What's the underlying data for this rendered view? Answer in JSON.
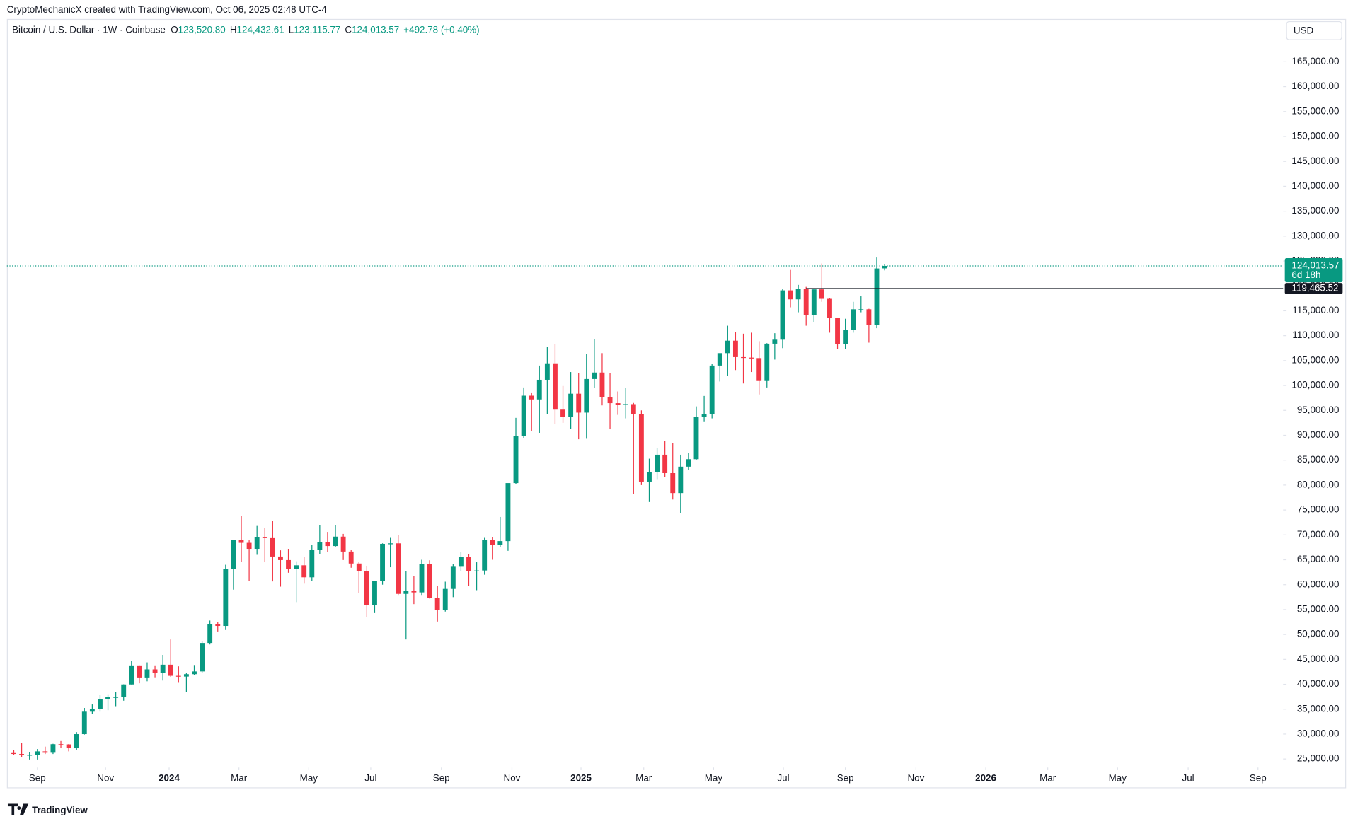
{
  "header": {
    "credit": "CryptoMechanicX created with TradingView.com, Oct 06, 2025 02:48 UTC-4",
    "symbol": "Bitcoin / U.S. Dollar · 1W · Coinbase",
    "ohlc": [
      {
        "key": "O",
        "value": "123,520.80"
      },
      {
        "key": "H",
        "value": "124,432.61"
      },
      {
        "key": "L",
        "value": "123,115.77"
      },
      {
        "key": "C",
        "value": "124,013.57"
      }
    ],
    "change": "+492.78 (+0.40%)",
    "currency": "USD"
  },
  "logo": "TradingView",
  "chart_data": {
    "type": "candlestick",
    "up_color": "#089981",
    "down_color": "#f23645",
    "open": [
      26190,
      26010,
      25830,
      25840,
      26530,
      26250,
      27970,
      27930,
      27150,
      29990,
      34500,
      35020,
      37060,
      37450,
      37450,
      39970,
      43790,
      41370,
      42990,
      42270,
      43930,
      41700,
      41550,
      42030,
      42580,
      48300,
      52130,
      51720,
      63120,
      68950,
      68400,
      67200,
      69600,
      69350,
      65650,
      64940,
      63100,
      63890,
      61480,
      66930,
      68550,
      67760,
      69650,
      66650,
      64250,
      62700,
      55850,
      60800,
      68200,
      68300,
      58150,
      58710,
      58450,
      64150,
      57300,
      54850,
      59150,
      63600,
      65600,
      62800,
      62850,
      69000,
      68000,
      68750,
      80400,
      89800,
      97950,
      97200,
      101150,
      104450,
      95150,
      93750,
      98350,
      94550,
      101300,
      102600,
      97700,
      96450,
      96150,
      96250,
      94250,
      80700,
      82600,
      86100,
      82400,
      78400,
      83700,
      85200,
      93700,
      94300,
      104000,
      106500,
      109000,
      105700,
      105600,
      105500,
      100900,
      108400,
      109200,
      119100,
      117300,
      119400,
      114200,
      119300,
      117400,
      113500,
      108300,
      111100,
      115300,
      115300,
      112100,
      123520.8
    ],
    "high": [
      26800,
      28150,
      26400,
      27000,
      27480,
      28050,
      28600,
      28000,
      30400,
      35250,
      35950,
      37950,
      37990,
      38400,
      40000,
      44700,
      43800,
      44400,
      43800,
      45900,
      49000,
      43600,
      42200,
      43870,
      48590,
      52800,
      52500,
      64000,
      69000,
      73800,
      68900,
      71800,
      71400,
      72800,
      66900,
      67200,
      64700,
      65500,
      68000,
      71900,
      70600,
      71950,
      70200,
      67000,
      64500,
      63800,
      60400,
      68300,
      69400,
      70000,
      62700,
      61800,
      65000,
      64900,
      59800,
      60600,
      64100,
      66500,
      66100,
      64500,
      69400,
      69500,
      73600,
      80300,
      93500,
      99600,
      98600,
      104000,
      107800,
      108300,
      99900,
      102700,
      102500,
      106400,
      109300,
      106500,
      102500,
      98800,
      99500,
      96500,
      95000,
      85300,
      87500,
      88800,
      88500,
      86100,
      86400,
      95800,
      97900,
      104300,
      105800,
      112000,
      110700,
      110400,
      110600,
      108900,
      108500,
      110500,
      119400,
      123200,
      120200,
      119800,
      119300,
      124500,
      117600,
      113600,
      113400,
      116800,
      117900,
      115400,
      125700,
      124432.61
    ],
    "low": [
      25800,
      25330,
      24900,
      24900,
      26000,
      26000,
      27150,
      26530,
      26800,
      29900,
      34100,
      34500,
      34800,
      35600,
      36700,
      39970,
      40200,
      40600,
      41400,
      40750,
      41500,
      40300,
      38500,
      41800,
      42250,
      48000,
      50600,
      50900,
      59000,
      64600,
      60800,
      66000,
      64500,
      60650,
      59600,
      62400,
      56500,
      60200,
      60700,
      66100,
      66600,
      67600,
      64950,
      63400,
      58400,
      53500,
      54300,
      60000,
      63500,
      57800,
      49000,
      56100,
      57800,
      57200,
      52600,
      54600,
      57500,
      62700,
      59800,
      58900,
      62000,
      65000,
      67500,
      66800,
      80200,
      89500,
      90800,
      90500,
      94200,
      92200,
      92500,
      91300,
      89200,
      89300,
      99500,
      96000,
      91200,
      94100,
      93400,
      78200,
      80000,
      76600,
      81200,
      81600,
      77100,
      74400,
      83100,
      85100,
      92800,
      93400,
      100800,
      102000,
      103100,
      100400,
      102700,
      98200,
      99600,
      105200,
      107500,
      115700,
      114700,
      112000,
      112700,
      116800,
      110600,
      107300,
      107300,
      110600,
      114700,
      108600,
      111500,
      123115.77
    ],
    "close": [
      26010,
      25830,
      25840,
      26530,
      26250,
      27970,
      27930,
      27150,
      29990,
      34500,
      35020,
      37060,
      37450,
      37450,
      39970,
      43790,
      41370,
      42990,
      42270,
      43930,
      41700,
      41550,
      42030,
      42580,
      48300,
      52130,
      51720,
      63120,
      68950,
      68400,
      67200,
      69600,
      69350,
      65650,
      64940,
      63100,
      63890,
      61480,
      66930,
      68550,
      67760,
      69650,
      66650,
      64250,
      62700,
      55850,
      60800,
      68200,
      68300,
      58150,
      58710,
      58450,
      64150,
      57300,
      54850,
      59150,
      63600,
      65600,
      62800,
      62850,
      69000,
      68000,
      68750,
      80400,
      89800,
      97950,
      97200,
      101150,
      104450,
      95150,
      93750,
      98350,
      94550,
      101300,
      102600,
      97700,
      96450,
      96150,
      96250,
      94250,
      80700,
      82600,
      86100,
      82400,
      78400,
      83700,
      85200,
      93700,
      94300,
      104000,
      106500,
      109000,
      105700,
      105600,
      105500,
      100900,
      108400,
      109200,
      119100,
      117300,
      119400,
      114200,
      119300,
      117400,
      113500,
      108300,
      111100,
      115300,
      115300,
      112100,
      123500,
      124013.57
    ],
    "xlim": [
      -0.88,
      161.8
    ],
    "ylim": [
      19300,
      173600
    ],
    "xticks": [
      {
        "value": 3,
        "label": "Sep"
      },
      {
        "value": 11.7,
        "label": "Nov"
      },
      {
        "value": 19.8,
        "label": "2024"
      },
      {
        "value": 28.7,
        "label": "Mar"
      },
      {
        "value": 37.6,
        "label": "May"
      },
      {
        "value": 45.5,
        "label": "Jul"
      },
      {
        "value": 54.5,
        "label": "Sep"
      },
      {
        "value": 63.5,
        "label": "Nov"
      },
      {
        "value": 72.3,
        "label": "2025"
      },
      {
        "value": 80.3,
        "label": "Mar"
      },
      {
        "value": 89.2,
        "label": "May"
      },
      {
        "value": 98.1,
        "label": "Jul"
      },
      {
        "value": 106,
        "label": "Sep"
      },
      {
        "value": 115,
        "label": "Nov"
      },
      {
        "value": 123.9,
        "label": "2026"
      },
      {
        "value": 131.8,
        "label": "Mar"
      },
      {
        "value": 140.7,
        "label": "May"
      },
      {
        "value": 149.7,
        "label": "Jul"
      },
      {
        "value": 158.6,
        "label": "Sep"
      }
    ],
    "yticks": [
      {
        "value": 25000,
        "label": "25,000.00"
      },
      {
        "value": 30000,
        "label": "30,000.00"
      },
      {
        "value": 35000,
        "label": "35,000.00"
      },
      {
        "value": 40000,
        "label": "40,000.00"
      },
      {
        "value": 45000,
        "label": "45,000.00"
      },
      {
        "value": 50000,
        "label": "50,000.00"
      },
      {
        "value": 55000,
        "label": "55,000.00"
      },
      {
        "value": 60000,
        "label": "60,000.00"
      },
      {
        "value": 65000,
        "label": "65,000.00"
      },
      {
        "value": 70000,
        "label": "70,000.00"
      },
      {
        "value": 75000,
        "label": "75,000.00"
      },
      {
        "value": 80000,
        "label": "80,000.00"
      },
      {
        "value": 85000,
        "label": "85,000.00"
      },
      {
        "value": 90000,
        "label": "90,000.00"
      },
      {
        "value": 95000,
        "label": "95,000.00"
      },
      {
        "value": 100000,
        "label": "100,000.00"
      },
      {
        "value": 105000,
        "label": "105,000.00"
      },
      {
        "value": 110000,
        "label": "110,000.00"
      },
      {
        "value": 115000,
        "label": "115,000.00"
      },
      {
        "value": 120000,
        "label": "120,000.00"
      },
      {
        "value": 125000,
        "label": "125,000.00"
      },
      {
        "value": 130000,
        "label": "130,000.00"
      },
      {
        "value": 135000,
        "label": "135,000.00"
      },
      {
        "value": 140000,
        "label": "140,000.00"
      },
      {
        "value": 145000,
        "label": "145,000.00"
      },
      {
        "value": 150000,
        "label": "150,000.00"
      },
      {
        "value": 155000,
        "label": "155,000.00"
      },
      {
        "value": 160000,
        "label": "160,000.00"
      },
      {
        "value": 165000,
        "label": "165,000.00"
      }
    ],
    "hline": {
      "value": 119465.52,
      "label": "119,465.52",
      "x_start": 101
    },
    "last_price": {
      "value": 124013.57,
      "label": "124,013.57",
      "countdown": "6d 18h"
    }
  }
}
